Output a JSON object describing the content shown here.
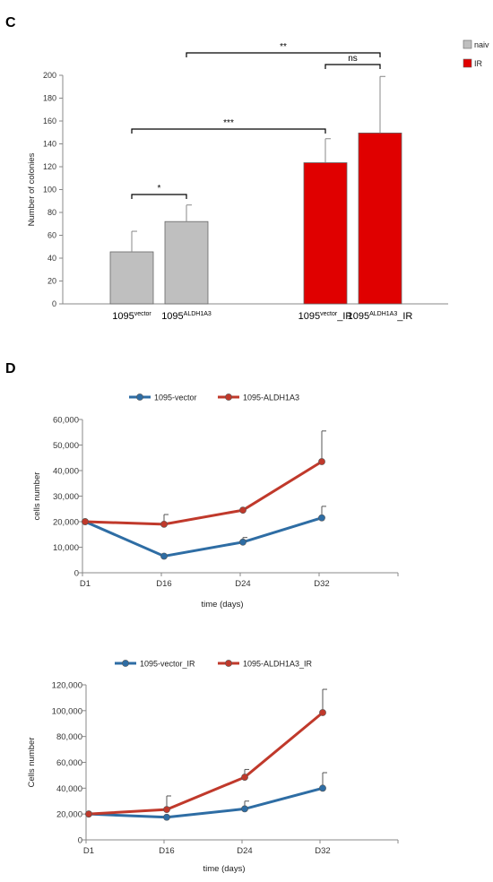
{
  "chart_data": [
    {
      "panel": "C",
      "type": "bar",
      "ylabel": "Number of colonies",
      "ylim": [
        0,
        200
      ],
      "yticks": [
        0,
        20,
        40,
        60,
        80,
        100,
        120,
        140,
        160,
        180,
        200
      ],
      "legend": [
        "naiv",
        "IR"
      ],
      "legend_position": "top-right",
      "colors": {
        "naiv": "#bfbfbf",
        "IR": "#e00000"
      },
      "categories": [
        {
          "base": "1095",
          "sup": "vector",
          "suffix": "",
          "group": "naiv",
          "value": 45.5,
          "error": 18
        },
        {
          "base": "1095",
          "sup": "ALDH1A3",
          "suffix": "",
          "group": "naiv",
          "value": 72,
          "error": 14.5
        },
        {
          "base": "1095",
          "sup": "vector",
          "suffix": "_IR",
          "group": "IR",
          "value": 123.5,
          "error": 21
        },
        {
          "base": "1095",
          "sup": "ALDH1A3",
          "suffix": "_IR",
          "group": "IR",
          "value": 149.5,
          "error": 49.5
        }
      ],
      "significance": [
        {
          "from": 0,
          "to": 1,
          "label": "*"
        },
        {
          "from": 0,
          "to": 2,
          "label": "***"
        },
        {
          "from": 2,
          "to": 3,
          "label": "ns"
        },
        {
          "from": 1,
          "to": 3,
          "label": "**"
        }
      ],
      "grid": false
    },
    {
      "panel": "D",
      "type": "line",
      "xlabel": "time (days)",
      "ylabel": "cells number",
      "x": [
        "D1",
        "D16",
        "D24",
        "D32"
      ],
      "ylim": [
        0,
        60000
      ],
      "yticks": [
        "0",
        "10,000",
        "20,000",
        "30,000",
        "40,000",
        "50,000",
        "60,000"
      ],
      "legend_position": "top",
      "series": [
        {
          "name": "1095-vector",
          "color": "#2e6da4",
          "values": [
            20000,
            6500,
            12000,
            21500
          ],
          "errors": [
            0,
            0,
            1800,
            4500
          ]
        },
        {
          "name": "1095-ALDH1A3",
          "color": "#c0392b",
          "values": [
            20000,
            19000,
            24500,
            43500
          ],
          "errors": [
            0,
            3800,
            0,
            12000
          ]
        }
      ],
      "grid": false
    },
    {
      "type": "line",
      "xlabel": "time (days)",
      "ylabel": "Cells number",
      "x": [
        "D1",
        "D16",
        "D24",
        "D32"
      ],
      "ylim": [
        0,
        120000
      ],
      "yticks": [
        "0",
        "20,000",
        "40,000",
        "60,000",
        "80,000",
        "100,000",
        "120,000"
      ],
      "legend_position": "top",
      "series": [
        {
          "name": "1095-vector_IR",
          "color": "#2e6da4",
          "values": [
            20000,
            17500,
            24000,
            40000
          ],
          "errors": [
            0,
            0,
            6000,
            12000
          ]
        },
        {
          "name": "1095-ALDH1A3_IR",
          "color": "#c0392b",
          "values": [
            20000,
            23500,
            48500,
            98500
          ],
          "errors": [
            0,
            10500,
            6000,
            18000
          ]
        }
      ],
      "grid": false
    }
  ]
}
